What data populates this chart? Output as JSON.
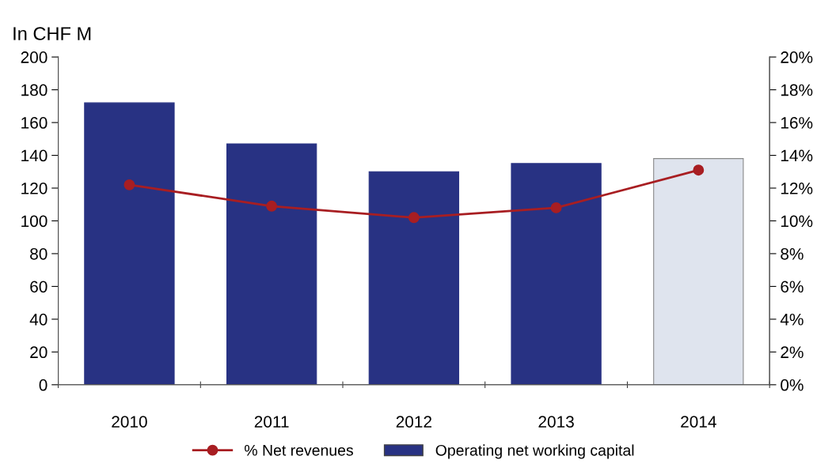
{
  "chart_data": {
    "type": "bar",
    "ylabel": "In CHF M",
    "categories": [
      "2010",
      "2011",
      "2012",
      "2013",
      "2014"
    ],
    "series": [
      {
        "name": "% Net revenues",
        "type": "line",
        "axis": "y2",
        "color": "#a81e22",
        "marker": "circle",
        "line_style": "solid",
        "values": [
          12.2,
          10.9,
          10.2,
          10.8,
          13.1
        ]
      },
      {
        "name": "Operating net working capital",
        "color": "#283283",
        "colors": [
          "#283283",
          "#283283",
          "#283283",
          "#283283",
          "#dfe4ee"
        ],
        "values": [
          172,
          147,
          130,
          135,
          138
        ]
      }
    ],
    "ylim": [
      0,
      200
    ],
    "yticks": [
      0,
      20,
      40,
      60,
      80,
      100,
      120,
      140,
      160,
      180,
      200
    ],
    "y2lim": [
      0,
      20
    ],
    "y2ticks": [
      {
        "value": 0,
        "label": "0%"
      },
      {
        "value": 2,
        "label": "2%"
      },
      {
        "value": 4,
        "label": "4%"
      },
      {
        "value": 6,
        "label": "6%"
      },
      {
        "value": 8,
        "label": "8%"
      },
      {
        "value": 10,
        "label": "10%"
      },
      {
        "value": 12,
        "label": "12%"
      },
      {
        "value": 14,
        "label": "14%"
      },
      {
        "value": 16,
        "label": "16%"
      },
      {
        "value": 18,
        "label": "18%"
      },
      {
        "value": 20,
        "label": "20%"
      }
    ],
    "grid": false,
    "legend": "bottom"
  }
}
